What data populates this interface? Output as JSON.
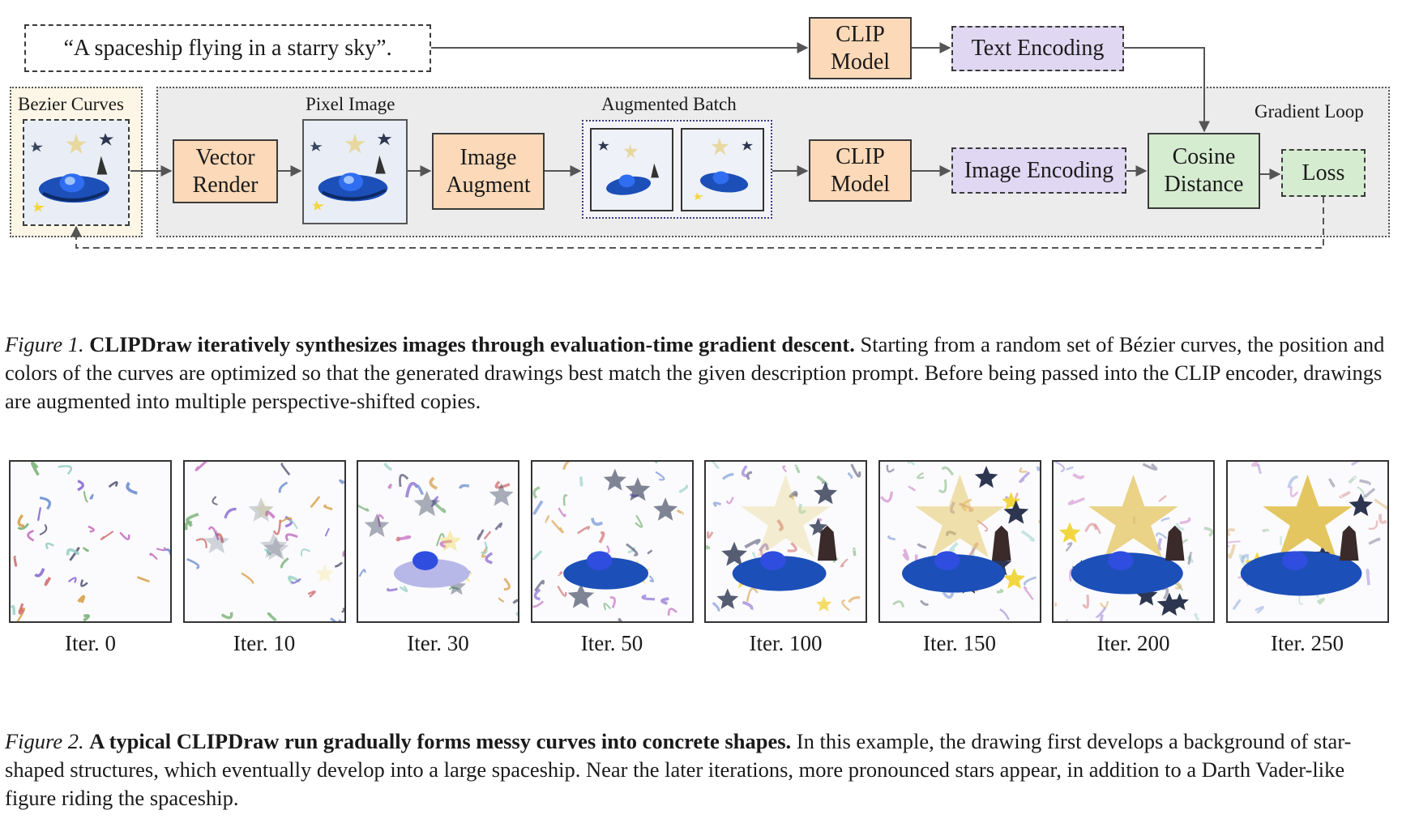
{
  "diagram": {
    "prompt": "“A spaceship flying in a starry sky”.",
    "clip_model_top": "CLIP\nModel",
    "text_encoding": "Text Encoding",
    "bezier_curves": "Bezier Curves",
    "vector_render": "Vector\nRender",
    "pixel_image": "Pixel Image",
    "image_augment": "Image\nAugment",
    "augmented_batch": "Augmented Batch",
    "clip_model_bottom": "CLIP\nModel",
    "image_encoding": "Image Encoding",
    "cosine_distance": "Cosine\nDistance",
    "loss": "Loss",
    "gradient_loop": "Gradient Loop"
  },
  "figure1": {
    "label": "Figure 1.",
    "title": "CLIPDraw iteratively synthesizes images through evaluation-time gradient descent.",
    "body": " Starting from a random set of Bézier curves, the position and colors of the curves are optimized so that the generated drawings best match the given description prompt. Before being passed into the CLIP encoder, drawings are augmented into multiple perspective-shifted copies."
  },
  "iterations": [
    "Iter. 0",
    "Iter. 10",
    "Iter. 30",
    "Iter. 50",
    "Iter. 100",
    "Iter. 150",
    "Iter. 200",
    "Iter. 250"
  ],
  "figure2": {
    "label": "Figure 2.",
    "title": "A typical CLIPDraw run gradually forms messy curves into concrete shapes.",
    "body": " In this example, the drawing first develops a background of star-shaped structures, which eventually develop into a large spaceship. Near the later iterations, more pronounced stars appear, in addition to a Darth Vader-like figure riding the spaceship."
  },
  "colors": {
    "orange_box": "#fcd9b8",
    "purple_box": "#e0d7f2",
    "green_box": "#d6ecd1",
    "gradient_loop_bg": "#ececec",
    "bezier_bg": "#fdf6e6"
  }
}
